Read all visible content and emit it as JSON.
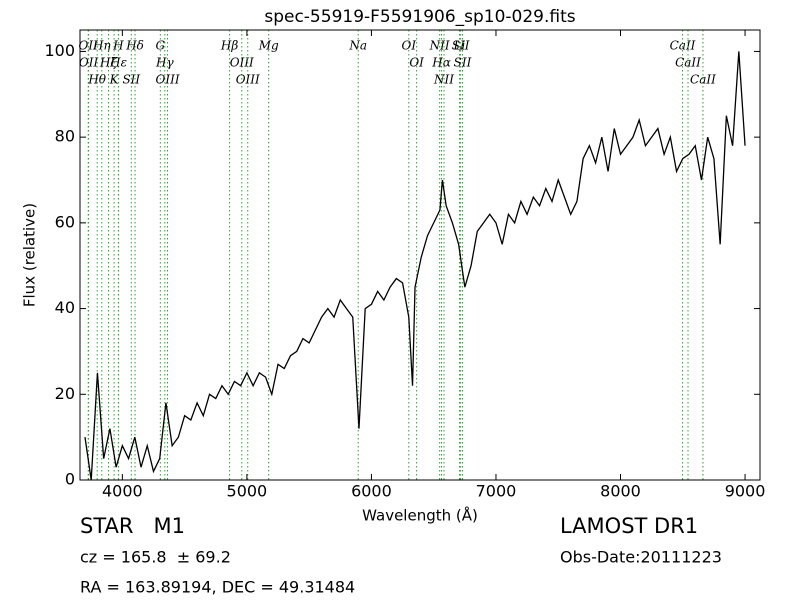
{
  "chart_data": {
    "type": "line",
    "title": "spec-55919-F5591906_sp10-029.fits",
    "x_label": "Wavelength (Å)",
    "y_label": "Flux (relative)",
    "xlim": [
      3660,
      9120
    ],
    "ylim": [
      0,
      105
    ],
    "xticks": [
      4000,
      5000,
      6000,
      7000,
      8000,
      9000
    ],
    "yticks": [
      0,
      20,
      40,
      60,
      80,
      100
    ],
    "x": [
      3700,
      3750,
      3800,
      3850,
      3900,
      3950,
      4000,
      4050,
      4100,
      4150,
      4200,
      4250,
      4300,
      4350,
      4400,
      4450,
      4500,
      4550,
      4600,
      4650,
      4700,
      4750,
      4800,
      4850,
      4900,
      4950,
      5000,
      5050,
      5100,
      5150,
      5200,
      5250,
      5300,
      5350,
      5400,
      5450,
      5500,
      5550,
      5600,
      5650,
      5700,
      5750,
      5800,
      5850,
      5900,
      5950,
      6000,
      6050,
      6100,
      6150,
      6200,
      6250,
      6300,
      6330,
      6350,
      6400,
      6450,
      6500,
      6550,
      6570,
      6600,
      6650,
      6700,
      6750,
      6800,
      6850,
      6900,
      6950,
      7000,
      7050,
      7100,
      7150,
      7200,
      7250,
      7300,
      7350,
      7400,
      7450,
      7500,
      7550,
      7600,
      7650,
      7700,
      7750,
      7800,
      7850,
      7900,
      7950,
      8000,
      8050,
      8100,
      8150,
      8200,
      8250,
      8300,
      8350,
      8400,
      8450,
      8500,
      8550,
      8600,
      8650,
      8700,
      8750,
      8800,
      8850,
      8900,
      8950,
      9000
    ],
    "series": [
      {
        "name": "flux",
        "color": "#000000",
        "values": [
          10,
          0,
          25,
          5,
          12,
          3,
          8,
          5,
          10,
          3,
          8,
          2,
          5,
          18,
          8,
          10,
          15,
          14,
          18,
          15,
          20,
          19,
          22,
          20,
          23,
          22,
          25,
          22,
          25,
          24,
          20,
          27,
          26,
          29,
          30,
          33,
          32,
          35,
          38,
          40,
          38,
          42,
          40,
          38,
          12,
          40,
          41,
          44,
          42,
          45,
          47,
          46,
          38,
          22,
          45,
          52,
          57,
          60,
          63,
          70,
          64,
          60,
          55,
          45,
          50,
          58,
          60,
          62,
          60,
          55,
          62,
          60,
          65,
          62,
          66,
          64,
          68,
          65,
          70,
          66,
          62,
          65,
          75,
          78,
          74,
          80,
          72,
          82,
          76,
          78,
          80,
          84,
          78,
          80,
          82,
          76,
          80,
          72,
          75,
          76,
          78,
          70,
          80,
          75,
          55,
          85,
          78,
          100,
          78
        ]
      }
    ],
    "line_color": "#2ca02c",
    "spectral_lines": [
      {
        "label": "OII",
        "wavelength": 3726
      },
      {
        "label": "OII",
        "wavelength": 3729
      },
      {
        "label": "Hθ",
        "wavelength": 3798
      },
      {
        "label": "Hη",
        "wavelength": 3835
      },
      {
        "label": "Hζ",
        "wavelength": 3889
      },
      {
        "label": "K",
        "wavelength": 3934
      },
      {
        "label": "H",
        "wavelength": 3968
      },
      {
        "label": "Hε",
        "wavelength": 3970
      },
      {
        "label": "SII",
        "wavelength": 4072
      },
      {
        "label": "Hδ",
        "wavelength": 4102
      },
      {
        "label": "G",
        "wavelength": 4305
      },
      {
        "label": "Hγ",
        "wavelength": 4341
      },
      {
        "label": "OIII",
        "wavelength": 4363
      },
      {
        "label": "Hβ",
        "wavelength": 4861
      },
      {
        "label": "OIII",
        "wavelength": 4959
      },
      {
        "label": "OIII",
        "wavelength": 5007
      },
      {
        "label": "Mg",
        "wavelength": 5175
      },
      {
        "label": "Na",
        "wavelength": 5894
      },
      {
        "label": "OI",
        "wavelength": 6300
      },
      {
        "label": "OI",
        "wavelength": 6363
      },
      {
        "label": "NII",
        "wavelength": 6548
      },
      {
        "label": "Hα",
        "wavelength": 6563
      },
      {
        "label": "NII",
        "wavelength": 6583
      },
      {
        "label": "Li",
        "wavelength": 6707
      },
      {
        "label": "SII",
        "wavelength": 6716
      },
      {
        "label": "SII",
        "wavelength": 6731
      },
      {
        "label": "CaII",
        "wavelength": 8498
      },
      {
        "label": "CaII",
        "wavelength": 8542
      },
      {
        "label": "CaII",
        "wavelength": 8662
      }
    ],
    "info": {
      "class": "STAR   M1",
      "redshift": "cz = 165.8  ± 69.2",
      "coords": "RA = 163.89194, DEC = 49.31484",
      "survey": "LAMOST DR1",
      "obs_date": "Obs-Date:20111223"
    }
  }
}
